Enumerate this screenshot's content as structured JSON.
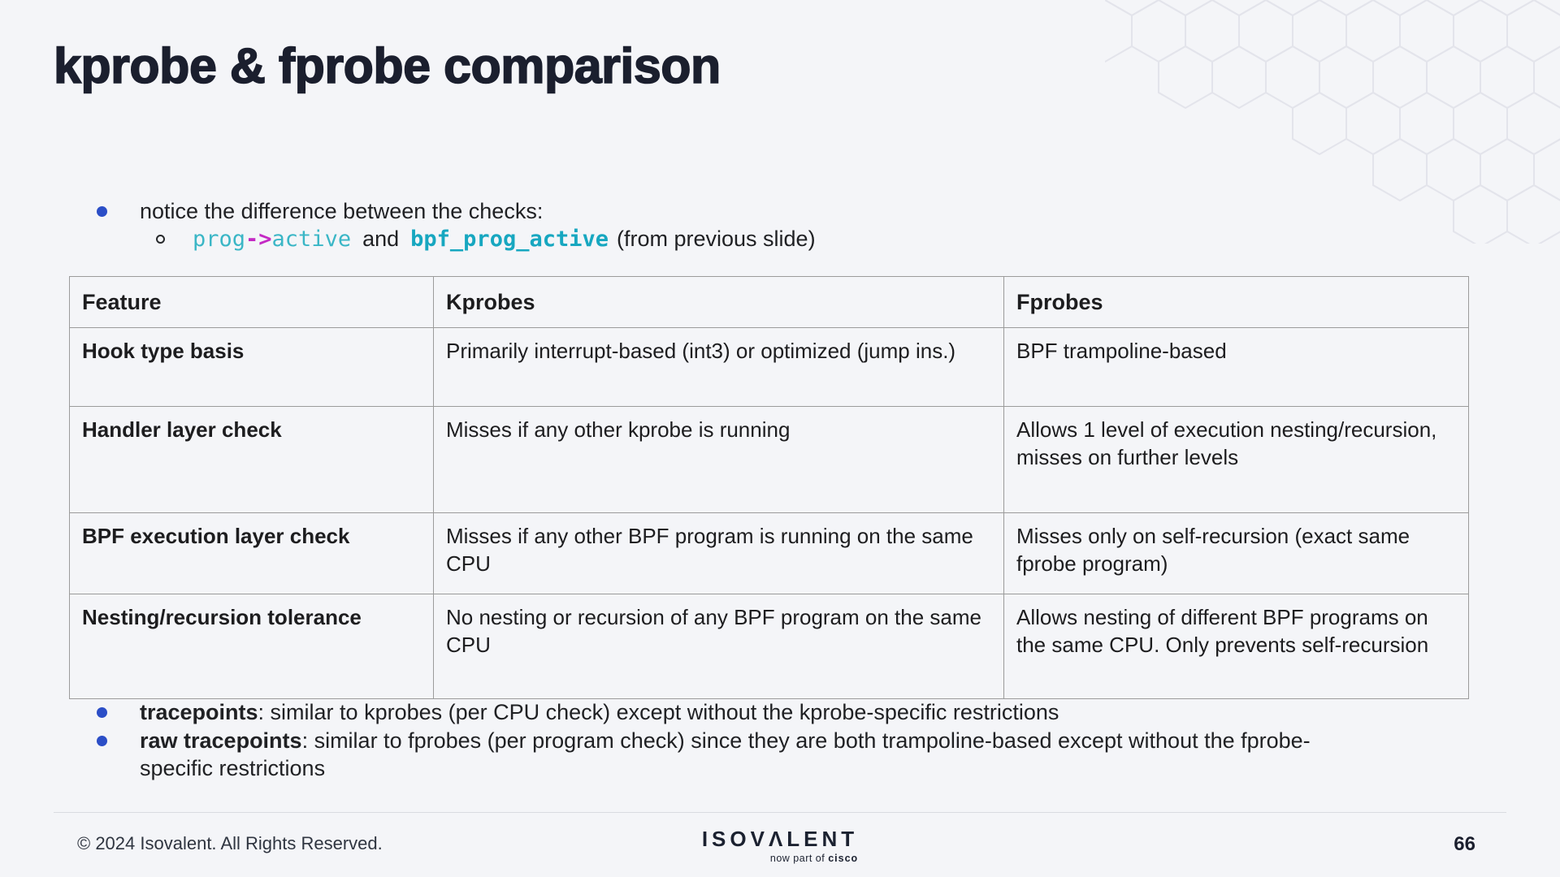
{
  "slide": {
    "title": "kprobe & fprobe comparison"
  },
  "intro": {
    "bullet": "notice the difference between the checks:",
    "code": {
      "prog": "prog",
      "arrow": "->",
      "active": "active",
      "connector": "and",
      "identifier": "bpf_prog_active",
      "suffix": "(from previous slide)"
    }
  },
  "table": {
    "headers": {
      "feature": "Feature",
      "kprobes": "Kprobes",
      "fprobes": "Fprobes"
    },
    "rows": [
      {
        "feature": "Hook type basis",
        "kprobes": "Primarily interrupt-based (int3) or optimized (jump ins.)",
        "fprobes": "BPF trampoline-based"
      },
      {
        "feature": "Handler layer check",
        "kprobes": "Misses if any other kprobe is running",
        "fprobes": "Allows 1 level of execution nesting/recursion, misses on further levels"
      },
      {
        "feature": "BPF execution layer check",
        "kprobes": "Misses if any other BPF program is running on the same CPU",
        "fprobes": "Misses only on self-recursion (exact same fprobe program)"
      },
      {
        "feature": "Nesting/recursion tolerance",
        "kprobes": "No nesting or recursion of any BPF program on the same CPU",
        "fprobes": "Allows nesting of different BPF programs on the same CPU. Only prevents self-recursion"
      }
    ]
  },
  "notes": [
    {
      "term": "tracepoints",
      "rest": ": similar to kprobes (per CPU check) except without the kprobe-specific restrictions"
    },
    {
      "term": "raw tracepoints",
      "rest": ": similar to fprobes (per program check) since they are both trampoline-based except without the fprobe-specific restrictions"
    }
  ],
  "footer": {
    "copyright": "© 2024 Isovalent. All Rights Reserved.",
    "logo": {
      "prefix": "ISOV",
      "a": "Λ",
      "suffix": "LENT",
      "tagline_prefix": "now part of ",
      "tagline_brand": "cisco"
    },
    "page_number": "66"
  },
  "colors": {
    "background": "#f4f5f8",
    "title": "#1b1f2e",
    "body_text": "#202124",
    "bullet_blue": "#2b4ec7",
    "code_teal": "#3ab6c6",
    "code_teal_bold": "#17a7c0",
    "code_magenta": "#c429c4",
    "table_border": "#9b9b9b",
    "divider": "#d9dbe1",
    "hexagon_stroke": "#e3e4eb"
  }
}
